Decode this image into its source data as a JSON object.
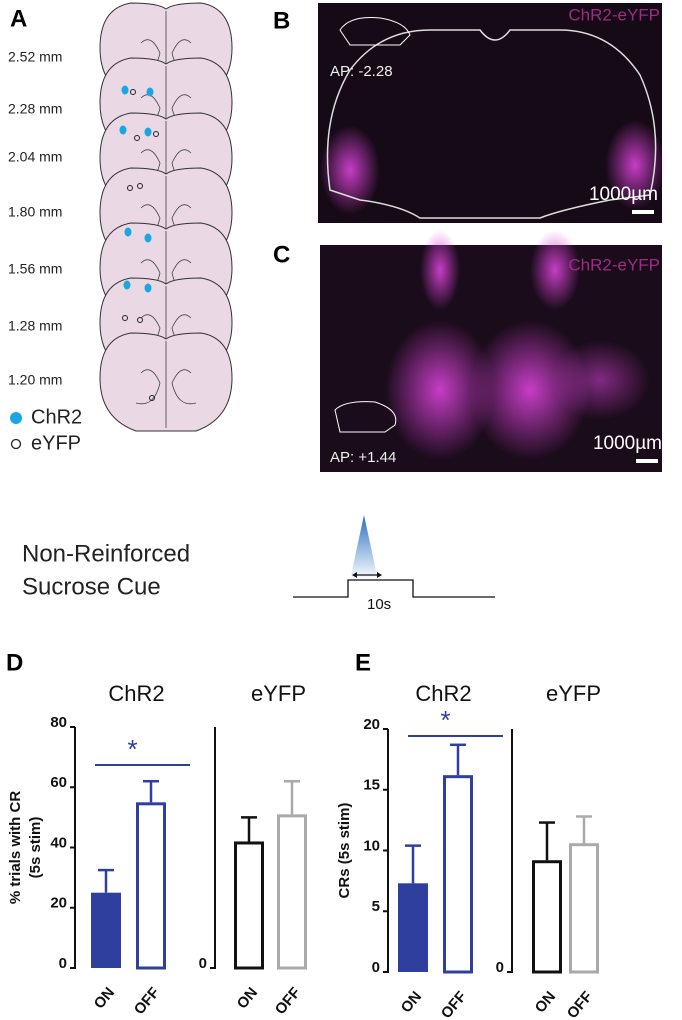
{
  "panel_labels": [
    "A",
    "B",
    "C",
    "D",
    "E"
  ],
  "atlas": {
    "levels": [
      "2.52 mm",
      "2.28 mm",
      "2.04 mm",
      "1.80 mm",
      "1.56 mm",
      "1.28 mm",
      "1.20 mm"
    ],
    "legend": [
      "ChR2",
      "eYFP"
    ]
  },
  "images": [
    {
      "label": "ChR2-eYFP",
      "ap": "AP: -2.28",
      "scale": "1000µm"
    },
    {
      "label": "ChR2-eYFP",
      "ap": "AP: +1.44",
      "scale": "1000µm"
    }
  ],
  "protocol": {
    "title": [
      "Non-Reinforced",
      "Sucrose Cue"
    ],
    "duration": "10s"
  },
  "chart_data": [
    {
      "type": "bar",
      "title": "ChR2",
      "ylabel": [
        "% trials with CR",
        "(5s stim)"
      ],
      "categories": [
        "ON",
        "OFF"
      ],
      "values": [
        25,
        55
      ],
      "errors": [
        7.5,
        7
      ],
      "colors": [
        "#2e3f9e",
        "#2e3f9e"
      ],
      "filled": [
        true,
        false
      ],
      "ylim": [
        0,
        80
      ],
      "yticks": [
        0,
        20,
        40,
        60,
        80
      ],
      "annotation": "*"
    },
    {
      "type": "bar",
      "title": "eYFP",
      "categories": [
        "ON",
        "OFF"
      ],
      "values": [
        42,
        51
      ],
      "errors": [
        8,
        11
      ],
      "colors": [
        "#111111",
        "#aaaaaa"
      ],
      "filled": [
        false,
        false
      ],
      "ylim": [
        0,
        80
      ],
      "yticks": [
        0
      ]
    },
    {
      "type": "bar",
      "title": "ChR2",
      "ylabel": [
        "CRs (5s stim)"
      ],
      "categories": [
        "ON",
        "OFF"
      ],
      "values": [
        7.3,
        16.2
      ],
      "errors": [
        3.1,
        2.5
      ],
      "colors": [
        "#2e3f9e",
        "#2e3f9e"
      ],
      "filled": [
        true,
        false
      ],
      "ylim": [
        0,
        20
      ],
      "yticks": [
        0,
        5,
        10,
        15,
        20
      ],
      "annotation": "*"
    },
    {
      "type": "bar",
      "title": "eYFP",
      "categories": [
        "ON",
        "OFF"
      ],
      "values": [
        9.2,
        10.6
      ],
      "errors": [
        3.1,
        2.2
      ],
      "colors": [
        "#111111",
        "#aaaaaa"
      ],
      "filled": [
        false,
        false
      ],
      "ylim": [
        0,
        20
      ],
      "yticks": [
        0
      ]
    }
  ]
}
